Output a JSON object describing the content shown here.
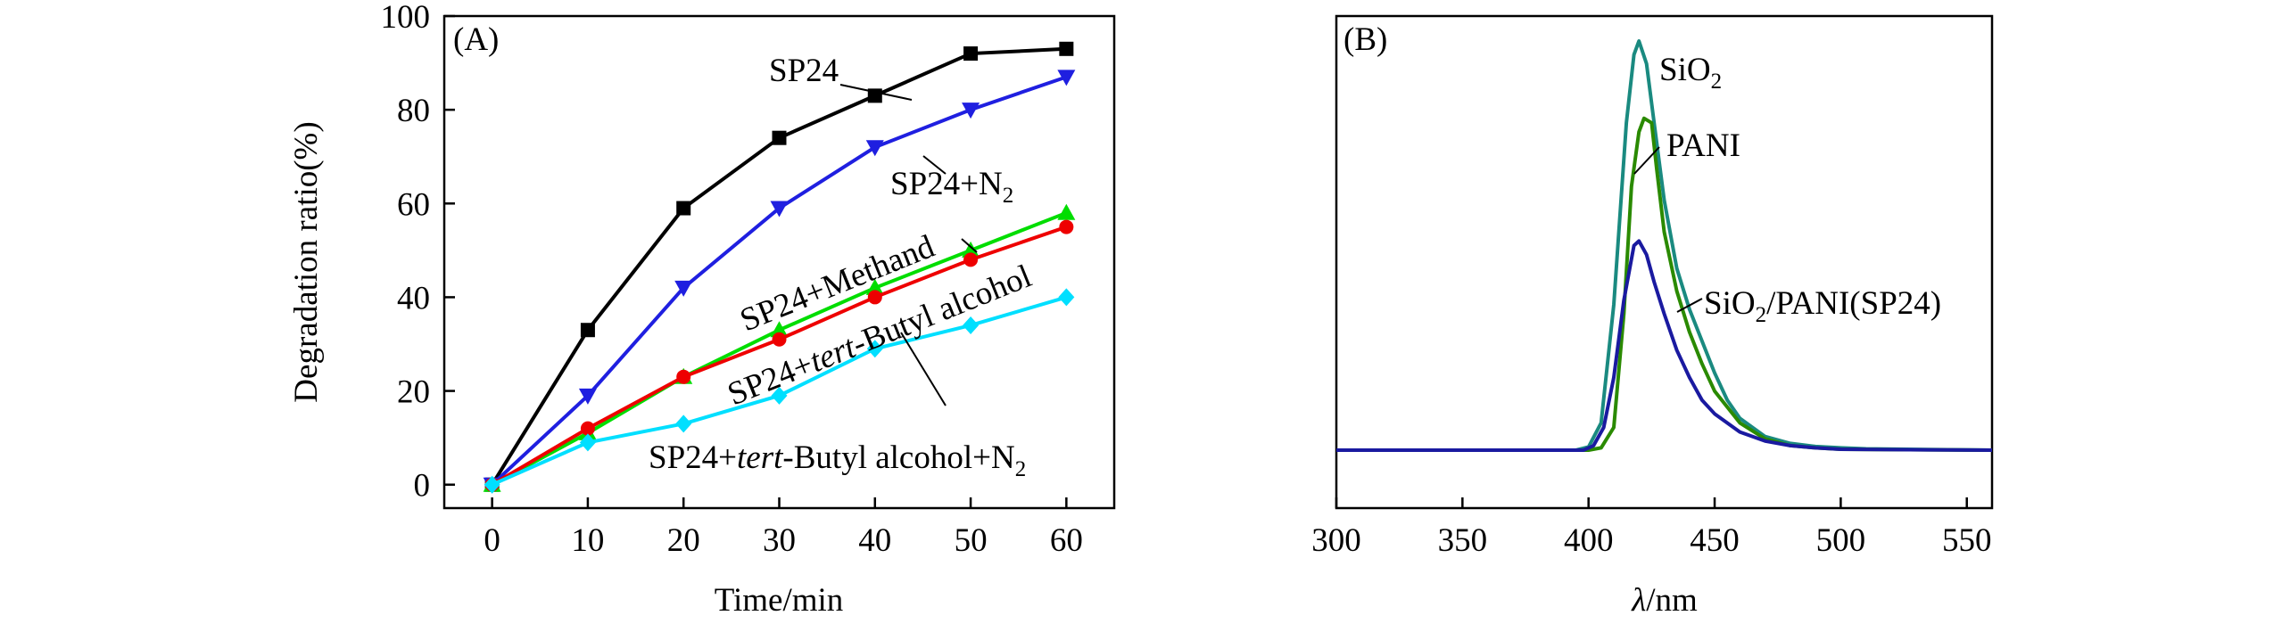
{
  "chart_data": [
    {
      "type": "line",
      "panel_label": "(A)",
      "xlabel": "Time/min",
      "ylabel": "Degradation ratio(%)",
      "xlim": [
        -5,
        65
      ],
      "ylim": [
        -5,
        100
      ],
      "xticks": [
        0,
        10,
        20,
        30,
        40,
        50,
        60
      ],
      "yticks": [
        0,
        20,
        40,
        60,
        80,
        100
      ],
      "x": [
        0,
        10,
        20,
        30,
        40,
        50,
        60
      ],
      "series": [
        {
          "name": "SP24",
          "color": "#000000",
          "marker": "square",
          "values": [
            0,
            33,
            59,
            74,
            83,
            92,
            93
          ]
        },
        {
          "name": "SP24+N₂",
          "color": "#1f1fe0",
          "marker": "triangle-down",
          "values": [
            0,
            19,
            42,
            59,
            72,
            80,
            87
          ]
        },
        {
          "name": "SP24+Methand",
          "color": "#00dd00",
          "marker": "triangle-up",
          "values": [
            0,
            11,
            23,
            33,
            42,
            50,
            58
          ]
        },
        {
          "name": "SP24+tert-Butyl alcohol",
          "color": "#ee0000",
          "marker": "circle",
          "values": [
            0,
            12,
            23,
            31,
            40,
            48,
            55
          ]
        },
        {
          "name": "SP24+tert-Butyl alcohol+N₂",
          "color": "#00dfff",
          "marker": "diamond",
          "values": [
            0,
            9,
            13,
            19,
            29,
            34,
            40
          ]
        }
      ],
      "annotations": {
        "sp24": "SP24",
        "n2_prefix": "SP24+N",
        "n2_sub": "2",
        "methand": "SP24+Methand",
        "tba_prefix": "SP24+",
        "tba_italic": "tert",
        "tba_suffix": "-Butyl alcohol",
        "tban2_prefix": "SP24+",
        "tban2_italic": "tert",
        "tban2_mid": "-Butyl alcohol+N",
        "tban2_sub": "2"
      }
    },
    {
      "type": "line",
      "panel_label": "(B)",
      "xlabel_italic": "λ",
      "xlabel_rest": "/nm",
      "xlim": [
        300,
        560
      ],
      "xticks": [
        300,
        350,
        400,
        450,
        500,
        550
      ],
      "y_ticks_shown": false,
      "series": [
        {
          "name": "SiO₂",
          "color": "#1a8a80",
          "x": [
            300,
            395,
            400,
            405,
            410,
            415,
            418,
            420,
            423,
            426,
            430,
            435,
            440,
            445,
            450,
            455,
            460,
            470,
            480,
            490,
            500,
            510,
            560
          ],
          "values": [
            0,
            0,
            0.7,
            6,
            32,
            72,
            87,
            90,
            85,
            72,
            55,
            40,
            31,
            24,
            17,
            11,
            7,
            3,
            1.5,
            0.8,
            0.5,
            0.3,
            0
          ]
        },
        {
          "name": "PANI",
          "color": "#2a8a00",
          "x": [
            300,
            400,
            405,
            410,
            414,
            417,
            420,
            422,
            425,
            427,
            430,
            435,
            440,
            445,
            450,
            460,
            470,
            480,
            490,
            500,
            560
          ],
          "values": [
            0,
            0,
            0.5,
            5,
            30,
            58,
            70,
            73,
            72,
            62,
            48,
            35,
            26,
            19,
            13,
            6,
            2.5,
            1,
            0.5,
            0.2,
            0
          ]
        },
        {
          "name": "SiO₂/PANI(SP24)",
          "color": "#1a1aa0",
          "x": [
            300,
            398,
            402,
            406,
            410,
            414,
            418,
            420,
            423,
            426,
            430,
            435,
            440,
            445,
            450,
            460,
            470,
            480,
            490,
            500,
            560
          ],
          "values": [
            0,
            0,
            1,
            5,
            16,
            33,
            45,
            46,
            43,
            37,
            30,
            22,
            16,
            11,
            8,
            4,
            2,
            1,
            0.5,
            0.2,
            0
          ]
        }
      ],
      "annotations": {
        "sio2_prefix": "SiO",
        "sio2_sub": "2",
        "pani": "PANI",
        "comp_prefix": "SiO",
        "comp_sub": "2",
        "comp_suffix": "/PANI(SP24)"
      }
    }
  ]
}
